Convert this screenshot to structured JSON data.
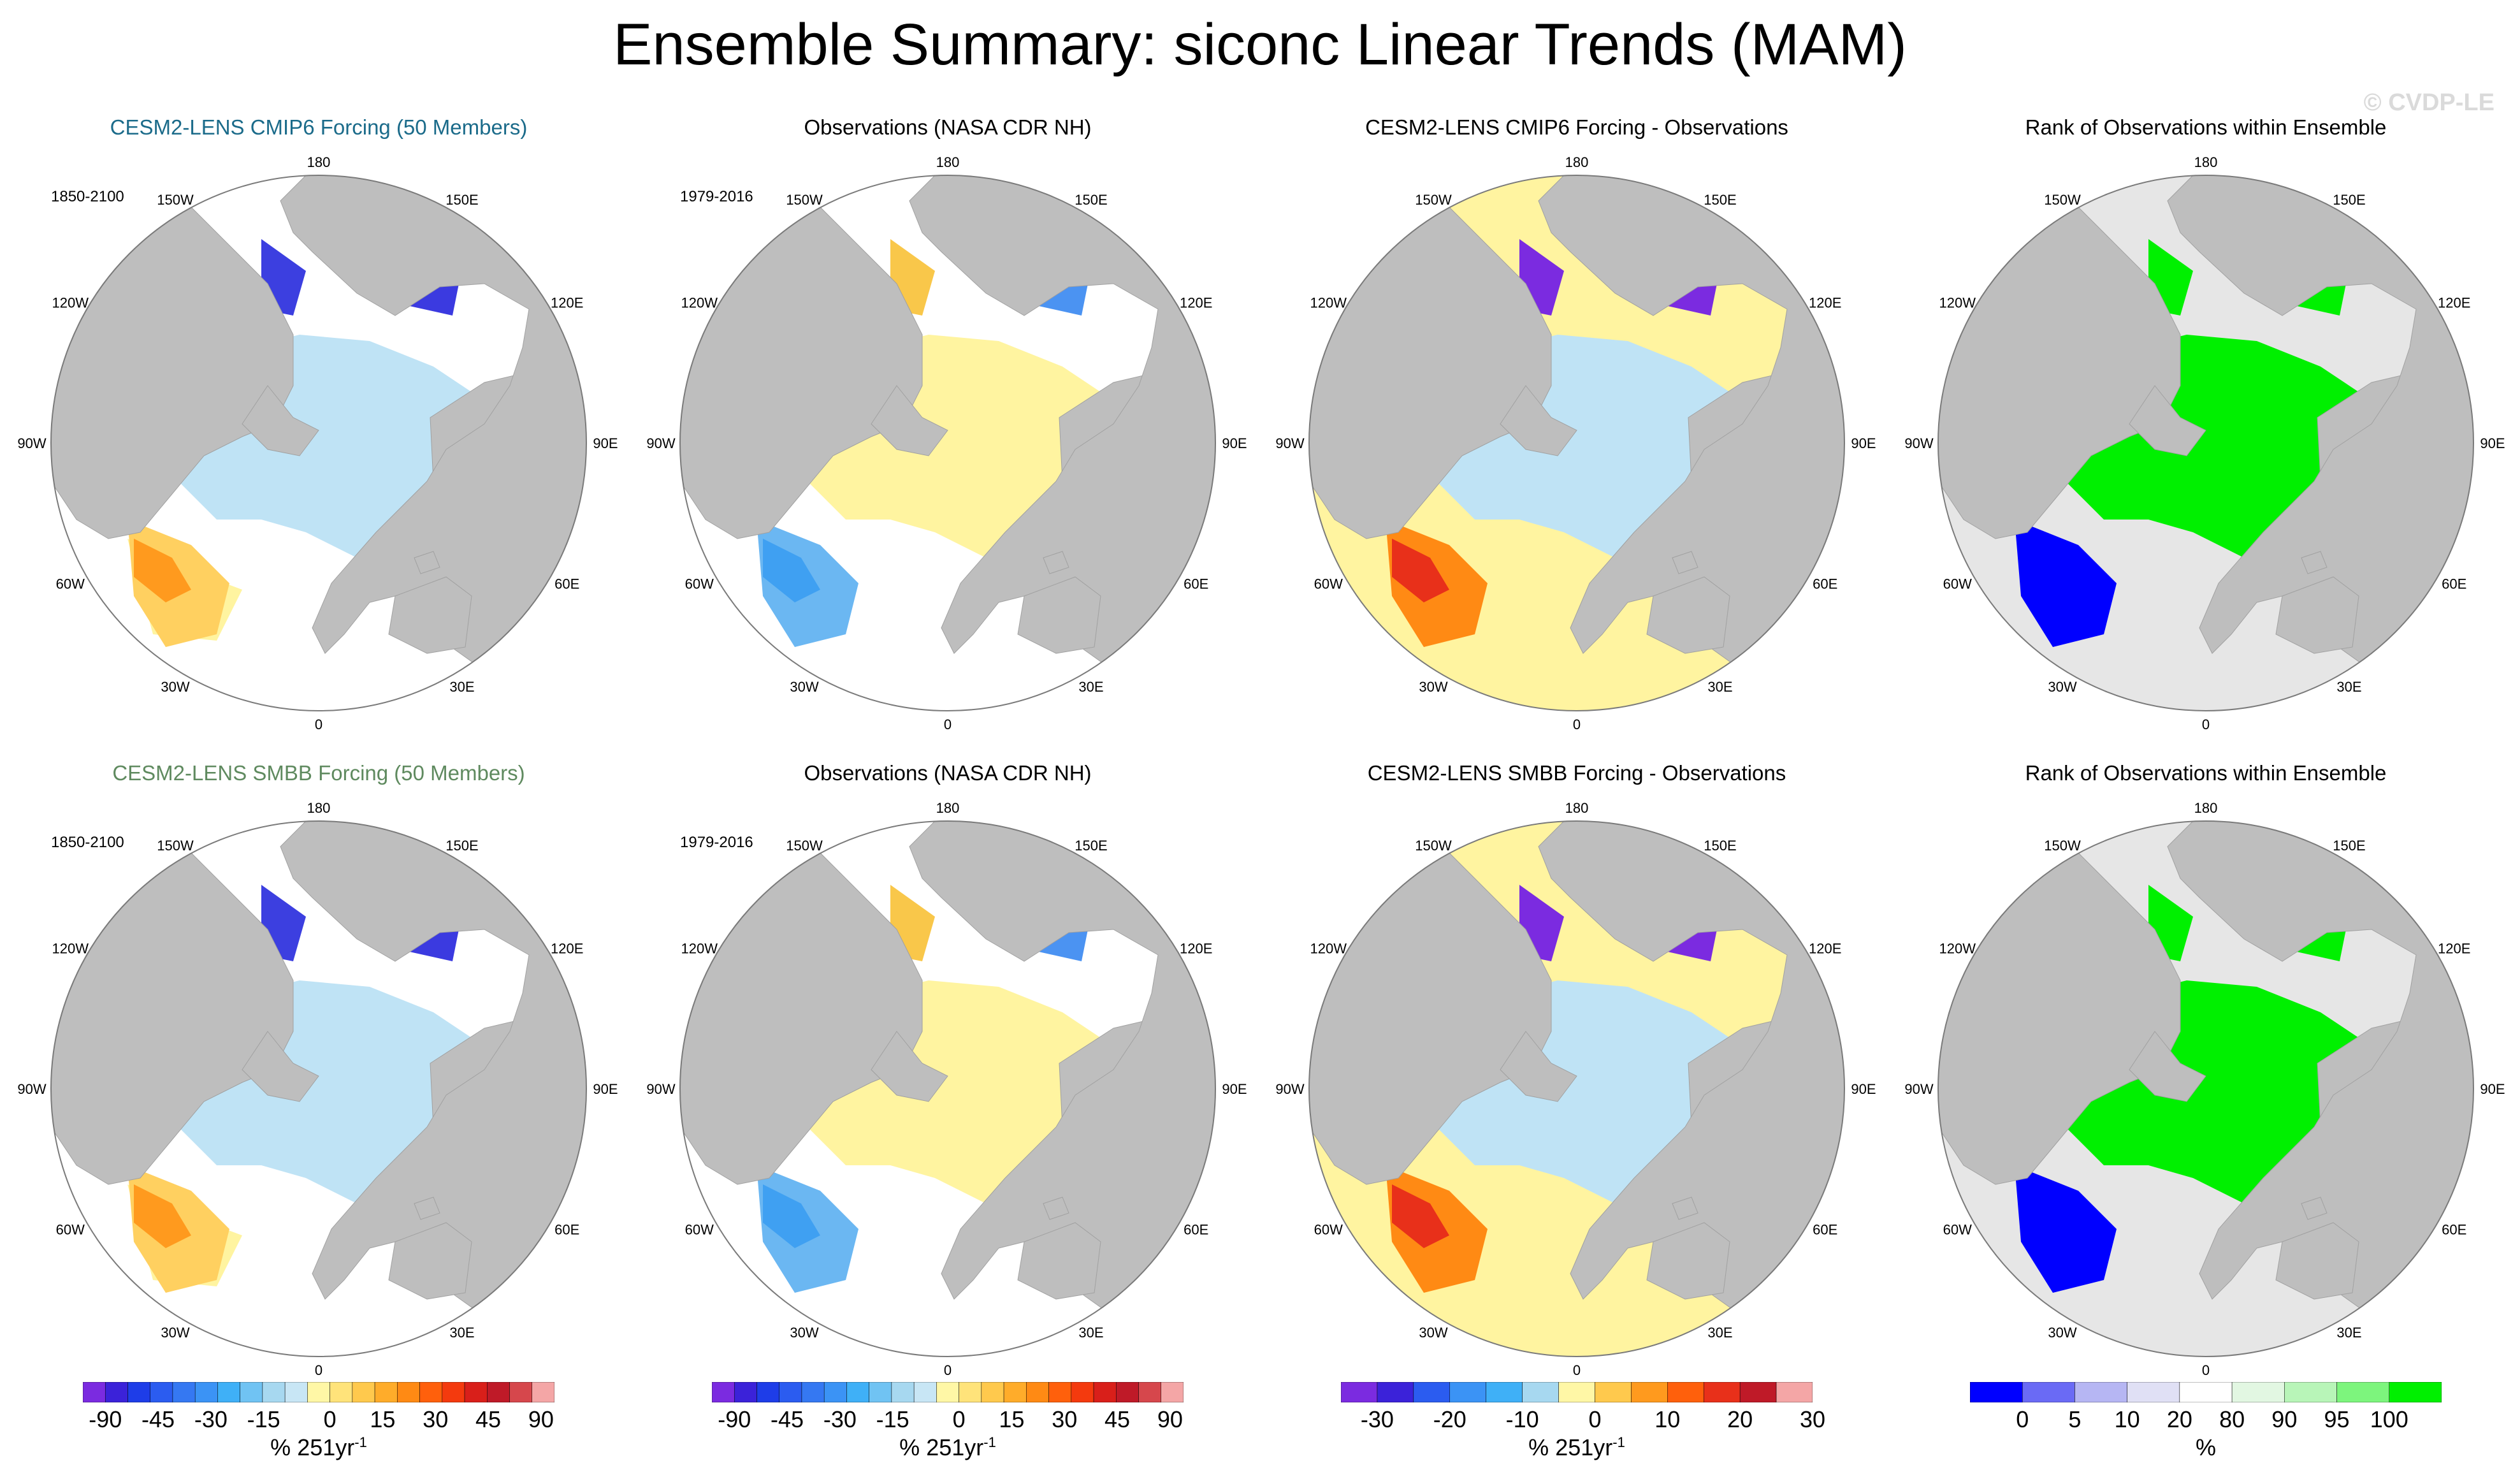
{
  "title": "Ensemble Summary: siconc Linear Trends (MAM)",
  "watermark": "© CVDP-LE",
  "rows": [
    {
      "panels": [
        {
          "title": "CESM2-LENS CMIP6 Forcing (50 Members)",
          "period": "1850-2100",
          "kind": "trend"
        },
        {
          "title": "Observations (NASA CDR NH)",
          "period": "1979-2016",
          "kind": "obs"
        },
        {
          "title": "CESM2-LENS CMIP6 Forcing - Observations",
          "period": "",
          "kind": "diff"
        },
        {
          "title": "Rank of Observations within Ensemble",
          "period": "",
          "kind": "rank"
        }
      ]
    },
    {
      "panels": [
        {
          "title": "CESM2-LENS SMBB Forcing (50 Members)",
          "period": "1850-2100",
          "kind": "trend"
        },
        {
          "title": "Observations (NASA CDR NH)",
          "period": "1979-2016",
          "kind": "obs"
        },
        {
          "title": "CESM2-LENS SMBB Forcing - Observations",
          "period": "",
          "kind": "diff"
        },
        {
          "title": "Rank of Observations within Ensemble",
          "period": "",
          "kind": "rank"
        }
      ]
    }
  ],
  "lon_labels": [
    "180",
    "150E",
    "120E",
    "90E",
    "60E",
    "30E",
    "0",
    "30W",
    "60W",
    "90W",
    "120W",
    "150W"
  ],
  "colorbars": [
    {
      "ticks": [
        "-90",
        "-45",
        "-30",
        "-15",
        "0",
        "15",
        "30",
        "45",
        "90"
      ],
      "units_main": "% 251yr",
      "units_sup": "-1",
      "colors": [
        "#7b2be0",
        "#3b22d9",
        "#1e3de8",
        "#2b5cf0",
        "#3578f2",
        "#3b93f5",
        "#3fb0f7",
        "#70c3f3",
        "#a7d8f0",
        "#c8e6f5",
        "#fff7a6",
        "#ffe37a",
        "#ffc94d",
        "#ffac2a",
        "#ff8a14",
        "#ff600c",
        "#f43a0e",
        "#d91f1a",
        "#bf1a28",
        "#d6474c",
        "#f4a6a6"
      ]
    },
    {
      "ticks": [
        "-90",
        "-45",
        "-30",
        "-15",
        "0",
        "15",
        "30",
        "45",
        "90"
      ],
      "units_main": "% 251yr",
      "units_sup": "-1",
      "colors": [
        "#7b2be0",
        "#3b22d9",
        "#1e3de8",
        "#2b5cf0",
        "#3578f2",
        "#3b93f5",
        "#3fb0f7",
        "#70c3f3",
        "#a7d8f0",
        "#c8e6f5",
        "#fff7a6",
        "#ffe37a",
        "#ffc94d",
        "#ffac2a",
        "#ff8a14",
        "#ff600c",
        "#f43a0e",
        "#d91f1a",
        "#bf1a28",
        "#d6474c",
        "#f4a6a6"
      ]
    },
    {
      "ticks": [
        "-30",
        "-20",
        "-10",
        "0",
        "10",
        "20",
        "30"
      ],
      "units_main": "% 251yr",
      "units_sup": "-1",
      "colors": [
        "#7b2be0",
        "#3b22d9",
        "#2b5cf0",
        "#3b93f5",
        "#3fb0f7",
        "#a7d8f0",
        "#fff7a6",
        "#ffc94d",
        "#ff9a1e",
        "#ff600c",
        "#e8301a",
        "#bf1a28",
        "#f4a6a6"
      ]
    },
    {
      "ticks": [
        "0",
        "5",
        "10",
        "20",
        "80",
        "90",
        "95",
        "100"
      ],
      "units_main": "%",
      "units_sup": "",
      "colors": [
        "#0000ff",
        "#6a6af5",
        "#b6b6f3",
        "#e0e0f5",
        "#ffffff",
        "#e2f7e2",
        "#b8f5b8",
        "#7df57d",
        "#00f000"
      ]
    }
  ]
}
